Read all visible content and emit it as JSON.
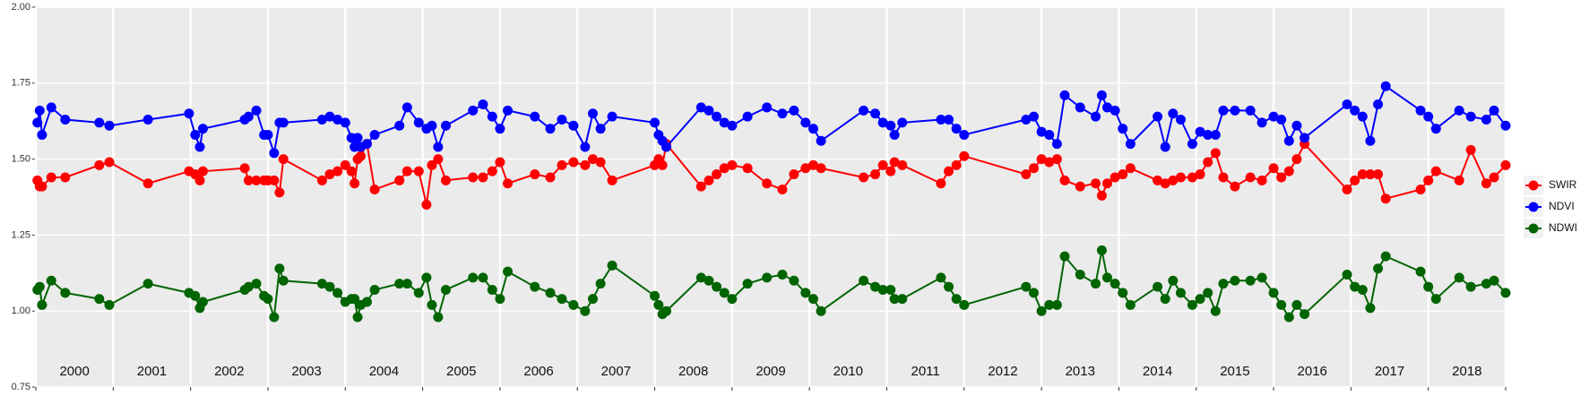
{
  "chart_data": {
    "type": "line",
    "xlim": [
      2000,
      2019
    ],
    "xticks": [
      2000,
      2001,
      2002,
      2003,
      2004,
      2005,
      2006,
      2007,
      2008,
      2009,
      2010,
      2011,
      2012,
      2013,
      2014,
      2015,
      2016,
      2017,
      2018,
      2019
    ],
    "ylim": [
      0.75,
      2
    ],
    "yticks": [
      {
        "value": 0.75,
        "label": "0.75"
      },
      {
        "value": 1,
        "label": "1.00"
      },
      1.25,
      {
        "value": 1.5,
        "label": "1.50"
      },
      1.75,
      {
        "value": 2,
        "label": "2.00"
      }
    ],
    "grid": true,
    "legend": "right",
    "annotations": [
      {
        "text": "2000",
        "x": 2000.5
      },
      {
        "text": "2001",
        "x": 2001.5
      },
      {
        "text": "2002",
        "x": 2002.5
      },
      {
        "text": "2003",
        "x": 2003.5
      },
      {
        "text": "2004",
        "x": 2004.5
      },
      {
        "text": "2005",
        "x": 2005.5
      },
      {
        "text": "2006",
        "x": 2006.5
      },
      {
        "text": "2007",
        "x": 2007.5
      },
      {
        "text": "2008",
        "x": 2008.5
      },
      {
        "text": "2009",
        "x": 2009.5
      },
      {
        "text": "2010",
        "x": 2010.5
      },
      {
        "text": "2011",
        "x": 2011.5
      },
      {
        "text": "2012",
        "x": 2012.5
      },
      {
        "text": "2013",
        "x": 2013.5
      },
      {
        "text": "2014",
        "x": 2014.5
      },
      {
        "text": "2015",
        "x": 2015.5
      },
      {
        "text": "2016",
        "x": 2016.5
      },
      {
        "text": "2017",
        "x": 2017.5
      },
      {
        "text": "2018",
        "x": 2018.5
      }
    ],
    "x": [
      2000.02,
      2000.05,
      2000.08,
      2000.2,
      2000.38,
      2000.82,
      2000.95,
      2001.45,
      2001.98,
      2002.06,
      2002.12,
      2002.16,
      2002.7,
      2002.75,
      2002.85,
      2002.95,
      2003.0,
      2003.08,
      2003.15,
      2003.2,
      2003.7,
      2003.8,
      2003.9,
      2004.0,
      2004.08,
      2004.12,
      2004.16,
      2004.2,
      2004.28,
      2004.38,
      2004.7,
      2004.8,
      2004.95,
      2005.05,
      2005.12,
      2005.2,
      2005.3,
      2005.65,
      2005.78,
      2005.9,
      2006.0,
      2006.1,
      2006.45,
      2006.65,
      2006.8,
      2006.95,
      2007.1,
      2007.2,
      2007.3,
      2007.45,
      2008.0,
      2008.05,
      2008.1,
      2008.15,
      2008.6,
      2008.7,
      2008.8,
      2008.9,
      2009.0,
      2009.2,
      2009.45,
      2009.65,
      2009.8,
      2009.95,
      2010.05,
      2010.15,
      2010.7,
      2010.85,
      2010.95,
      2011.05,
      2011.1,
      2011.2,
      2011.7,
      2011.8,
      2011.9,
      2012.0,
      2012.8,
      2012.9,
      2013.0,
      2013.1,
      2013.2,
      2013.3,
      2013.5,
      2013.7,
      2013.78,
      2013.85,
      2013.95,
      2014.05,
      2014.15,
      2014.5,
      2014.6,
      2014.7,
      2014.8,
      2014.95,
      2015.05,
      2015.15,
      2015.25,
      2015.35,
      2015.5,
      2015.7,
      2015.85,
      2016.0,
      2016.1,
      2016.2,
      2016.3,
      2016.4,
      2016.95,
      2017.05,
      2017.15,
      2017.25,
      2017.35,
      2017.45,
      2017.9,
      2018.0,
      2018.1,
      2018.4,
      2018.55,
      2018.75,
      2018.85,
      2019.0
    ],
    "series": [
      {
        "name": "SWIR",
        "color": "#ff0000",
        "values": [
          1.43,
          1.41,
          1.41,
          1.44,
          1.44,
          1.48,
          1.49,
          1.42,
          1.46,
          1.45,
          1.43,
          1.46,
          1.47,
          1.43,
          1.43,
          1.43,
          1.43,
          1.43,
          1.39,
          1.5,
          1.43,
          1.45,
          1.46,
          1.48,
          1.46,
          1.42,
          1.5,
          1.51,
          1.55,
          1.4,
          1.43,
          1.46,
          1.46,
          1.35,
          1.48,
          1.5,
          1.43,
          1.44,
          1.44,
          1.46,
          1.49,
          1.42,
          1.45,
          1.44,
          1.48,
          1.49,
          1.48,
          1.5,
          1.49,
          1.43,
          1.48,
          1.5,
          1.48,
          1.55,
          1.41,
          1.43,
          1.45,
          1.47,
          1.48,
          1.47,
          1.42,
          1.4,
          1.45,
          1.47,
          1.48,
          1.47,
          1.44,
          1.45,
          1.48,
          1.46,
          1.49,
          1.48,
          1.42,
          1.46,
          1.48,
          1.51,
          1.45,
          1.47,
          1.5,
          1.49,
          1.5,
          1.43,
          1.41,
          1.42,
          1.38,
          1.42,
          1.44,
          1.45,
          1.47,
          1.43,
          1.42,
          1.43,
          1.44,
          1.44,
          1.45,
          1.49,
          1.52,
          1.44,
          1.41,
          1.44,
          1.43,
          1.47,
          1.44,
          1.46,
          1.5,
          1.55,
          1.4,
          1.43,
          1.45,
          1.45,
          1.45,
          1.37,
          1.4,
          1.43,
          1.46,
          1.43,
          1.53,
          1.42,
          1.44,
          1.48
        ]
      },
      {
        "name": "NDVI",
        "color": "#0000ff",
        "values": [
          1.62,
          1.66,
          1.58,
          1.67,
          1.63,
          1.62,
          1.61,
          1.63,
          1.65,
          1.58,
          1.54,
          1.6,
          1.63,
          1.64,
          1.66,
          1.58,
          1.58,
          1.52,
          1.62,
          1.62,
          1.63,
          1.64,
          1.63,
          1.62,
          1.57,
          1.54,
          1.57,
          1.54,
          1.55,
          1.58,
          1.61,
          1.67,
          1.62,
          1.6,
          1.61,
          1.54,
          1.61,
          1.66,
          1.68,
          1.64,
          1.6,
          1.66,
          1.64,
          1.6,
          1.63,
          1.61,
          1.54,
          1.65,
          1.6,
          1.64,
          1.62,
          1.58,
          1.56,
          1.54,
          1.67,
          1.66,
          1.64,
          1.62,
          1.61,
          1.64,
          1.67,
          1.65,
          1.66,
          1.62,
          1.6,
          1.56,
          1.66,
          1.65,
          1.62,
          1.61,
          1.58,
          1.62,
          1.63,
          1.63,
          1.6,
          1.58,
          1.63,
          1.64,
          1.59,
          1.58,
          1.55,
          1.71,
          1.67,
          1.64,
          1.71,
          1.67,
          1.66,
          1.6,
          1.55,
          1.64,
          1.54,
          1.65,
          1.63,
          1.55,
          1.59,
          1.58,
          1.58,
          1.66,
          1.66,
          1.66,
          1.62,
          1.64,
          1.63,
          1.56,
          1.61,
          1.57,
          1.68,
          1.66,
          1.64,
          1.56,
          1.68,
          1.74,
          1.66,
          1.64,
          1.6,
          1.66,
          1.64,
          1.63,
          1.66,
          1.61
        ]
      },
      {
        "name": "NDWI",
        "color": "#006400",
        "values": [
          1.07,
          1.08,
          1.02,
          1.1,
          1.06,
          1.04,
          1.02,
          1.09,
          1.06,
          1.05,
          1.01,
          1.03,
          1.07,
          1.08,
          1.09,
          1.05,
          1.04,
          0.98,
          1.14,
          1.1,
          1.09,
          1.08,
          1.06,
          1.03,
          1.04,
          1.04,
          0.98,
          1.02,
          1.03,
          1.07,
          1.09,
          1.09,
          1.06,
          1.11,
          1.02,
          0.98,
          1.07,
          1.11,
          1.11,
          1.07,
          1.04,
          1.13,
          1.08,
          1.06,
          1.04,
          1.02,
          1.0,
          1.04,
          1.09,
          1.15,
          1.05,
          1.02,
          0.99,
          1.0,
          1.11,
          1.1,
          1.08,
          1.06,
          1.04,
          1.09,
          1.11,
          1.12,
          1.1,
          1.06,
          1.04,
          1.0,
          1.1,
          1.08,
          1.07,
          1.07,
          1.04,
          1.04,
          1.11,
          1.08,
          1.04,
          1.02,
          1.08,
          1.06,
          1.0,
          1.02,
          1.02,
          1.18,
          1.12,
          1.09,
          1.2,
          1.11,
          1.09,
          1.06,
          1.02,
          1.08,
          1.04,
          1.1,
          1.06,
          1.02,
          1.04,
          1.06,
          1.0,
          1.09,
          1.1,
          1.1,
          1.11,
          1.06,
          1.02,
          0.98,
          1.02,
          0.99,
          1.12,
          1.08,
          1.07,
          1.01,
          1.14,
          1.18,
          1.13,
          1.08,
          1.04,
          1.11,
          1.08,
          1.09,
          1.1,
          1.06
        ]
      }
    ]
  }
}
